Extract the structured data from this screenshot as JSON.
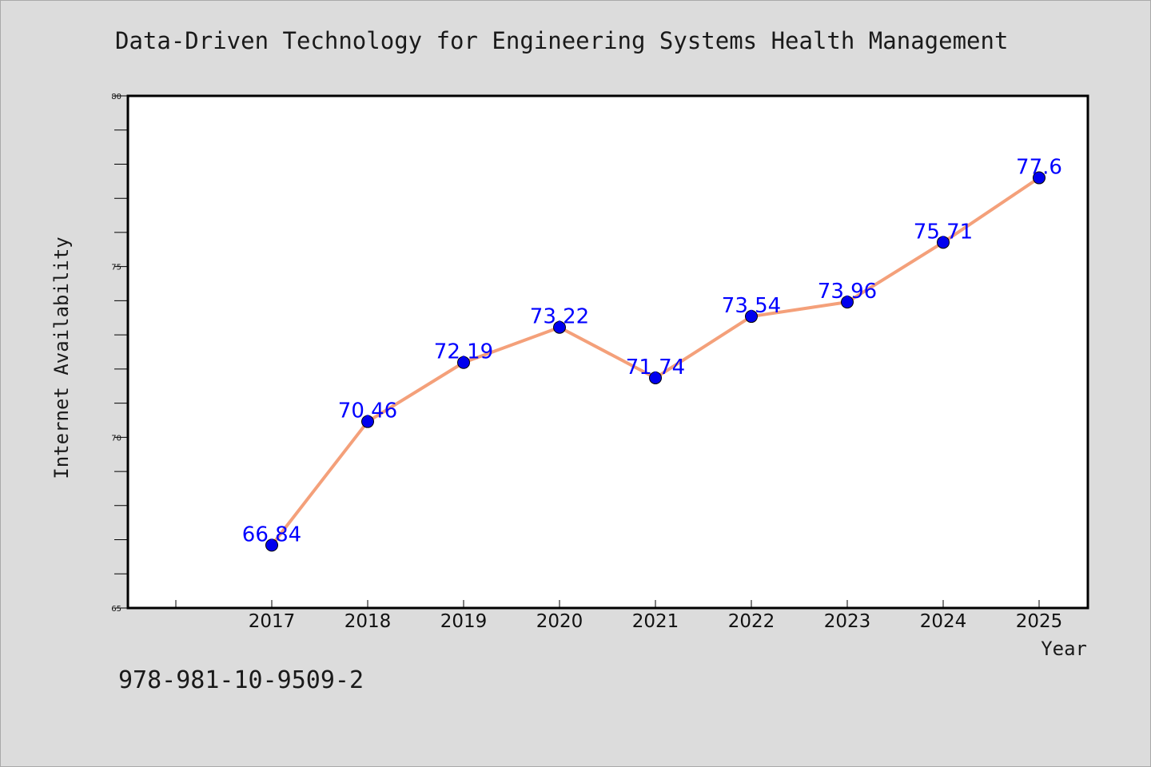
{
  "header": {
    "title": "Data-Driven Technology for Engineering Systems Health Management"
  },
  "footer": {
    "isbn": "978-981-10-9509-2"
  },
  "chart_data": {
    "type": "line",
    "title": "Data-Driven Technology for Engineering Systems Health Management",
    "xlabel": "Year",
    "ylabel": "Internet Availability",
    "categories": [
      "2017",
      "2018",
      "2019",
      "2020",
      "2021",
      "2022",
      "2023",
      "2024",
      "2025"
    ],
    "series": [
      {
        "values": [
          66.84,
          70.46,
          72.19,
          73.22,
          71.74,
          73.54,
          73.96,
          75.71,
          77.6
        ],
        "labels": [
          "66.84",
          "70.46",
          "72.19",
          "73.22",
          "71.74",
          "73.54",
          "73.96",
          "75.71",
          "77.6"
        ],
        "line_color": "#f4a07a",
        "marker_color": "#0000ee"
      }
    ],
    "ylim": [
      65,
      80
    ],
    "yticks": [
      "65",
      "70",
      "75",
      "80"
    ],
    "grid": false,
    "plot_background": "#ffffff"
  }
}
